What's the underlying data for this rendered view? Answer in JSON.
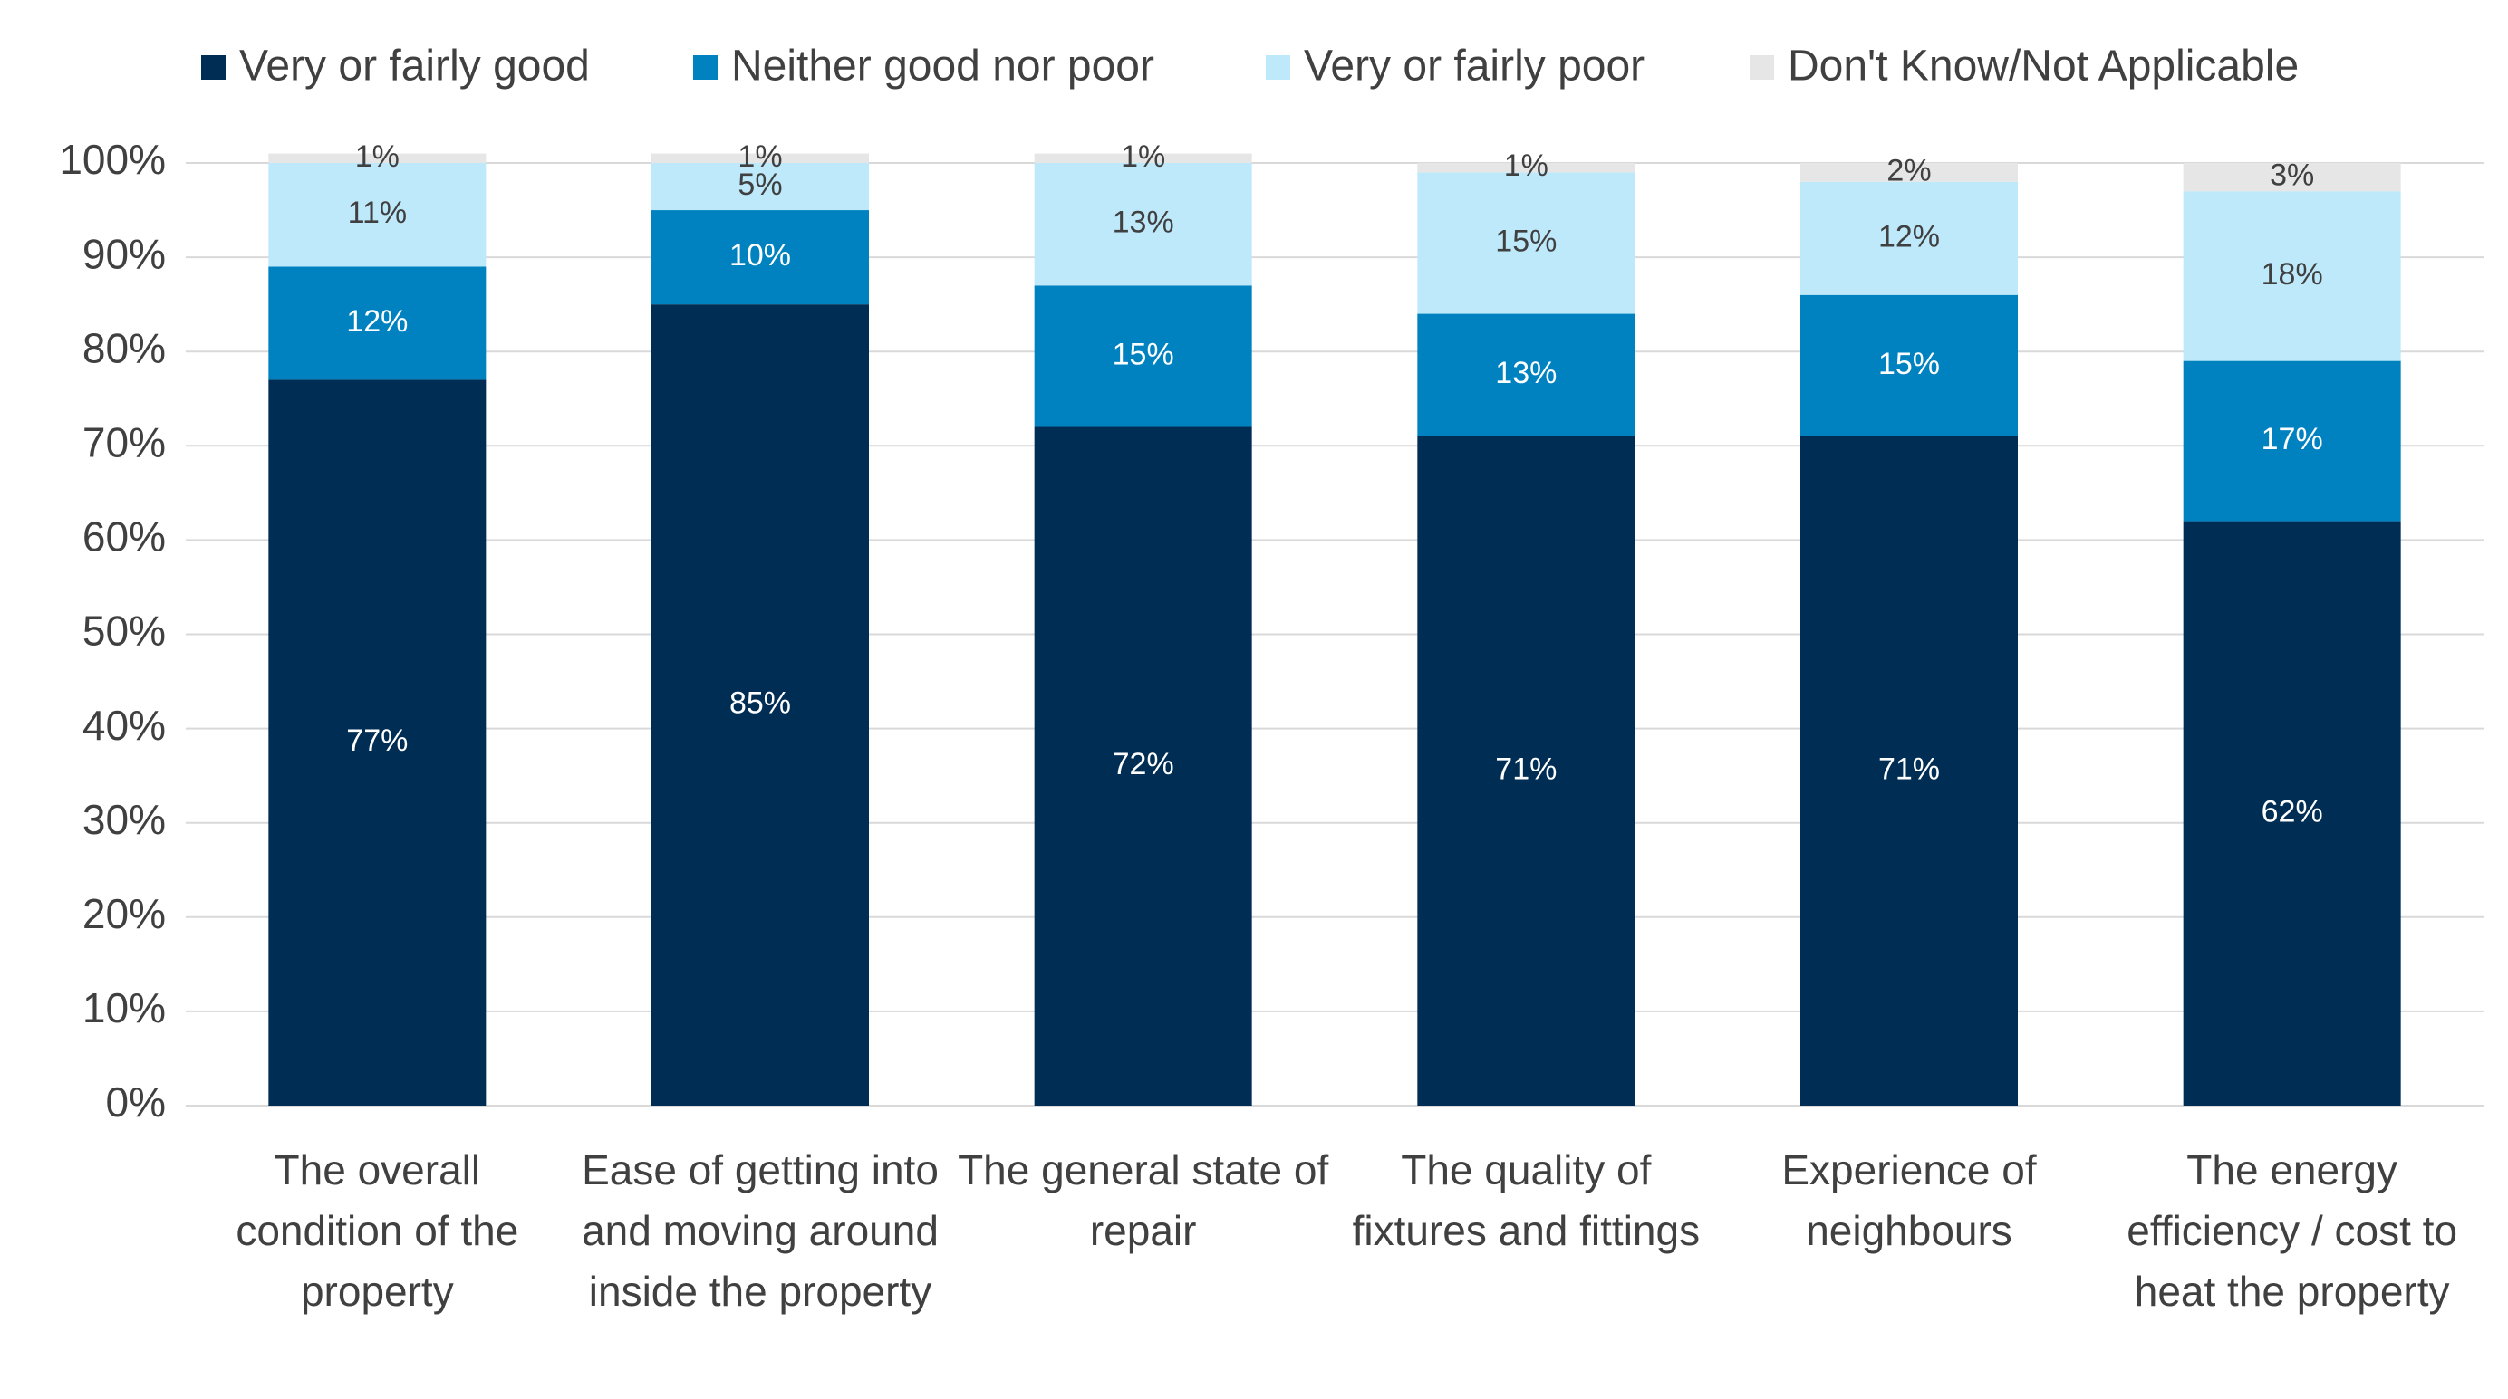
{
  "chart_data": {
    "type": "stacked-bar",
    "categories": [
      "The overall condition of the property",
      "Ease of getting into and moving around inside the property",
      "The general state of repair",
      "The quality of fixtures and fittings",
      "Experience of neighbours",
      "The energy efficiency / cost to heat the property"
    ],
    "series": [
      {
        "name": "Very or fairly good",
        "color": "#002d54",
        "values": [
          77,
          85,
          72,
          71,
          71,
          62
        ],
        "value_labels": [
          "77%",
          "85%",
          "72%",
          "71%",
          "71%",
          "62%"
        ]
      },
      {
        "name": "Neither good nor poor",
        "color": "#0082c0",
        "values": [
          12,
          10,
          15,
          13,
          15,
          17
        ],
        "value_labels": [
          "12%",
          "10%",
          "15%",
          "13%",
          "15%",
          "17%"
        ]
      },
      {
        "name": "Very or fairly poor",
        "color": "#bde9fb",
        "values": [
          11,
          5,
          13,
          15,
          12,
          18
        ],
        "value_labels": [
          "11%",
          "5%",
          "13%",
          "15%",
          "12%",
          "18%"
        ]
      },
      {
        "name": "Don't Know/Not Applicable",
        "color": "#e6e6e6",
        "values": [
          1,
          1,
          1,
          1,
          2,
          3
        ],
        "value_labels": [
          "1%",
          "1%",
          "1%",
          "1%",
          "2%",
          "3%"
        ]
      }
    ],
    "ylim": [
      0,
      100
    ],
    "yticks": [
      {
        "value": 0,
        "label": "0%"
      },
      {
        "value": 10,
        "label": "10%"
      },
      {
        "value": 20,
        "label": "20%"
      },
      {
        "value": 30,
        "label": "30%"
      },
      {
        "value": 40,
        "label": "40%"
      },
      {
        "value": 50,
        "label": "50%"
      },
      {
        "value": 60,
        "label": "60%"
      },
      {
        "value": 70,
        "label": "70%"
      },
      {
        "value": 80,
        "label": "80%"
      },
      {
        "value": 90,
        "label": "90%"
      },
      {
        "value": 100,
        "label": "100%"
      }
    ],
    "grid": true,
    "legend": "top"
  }
}
